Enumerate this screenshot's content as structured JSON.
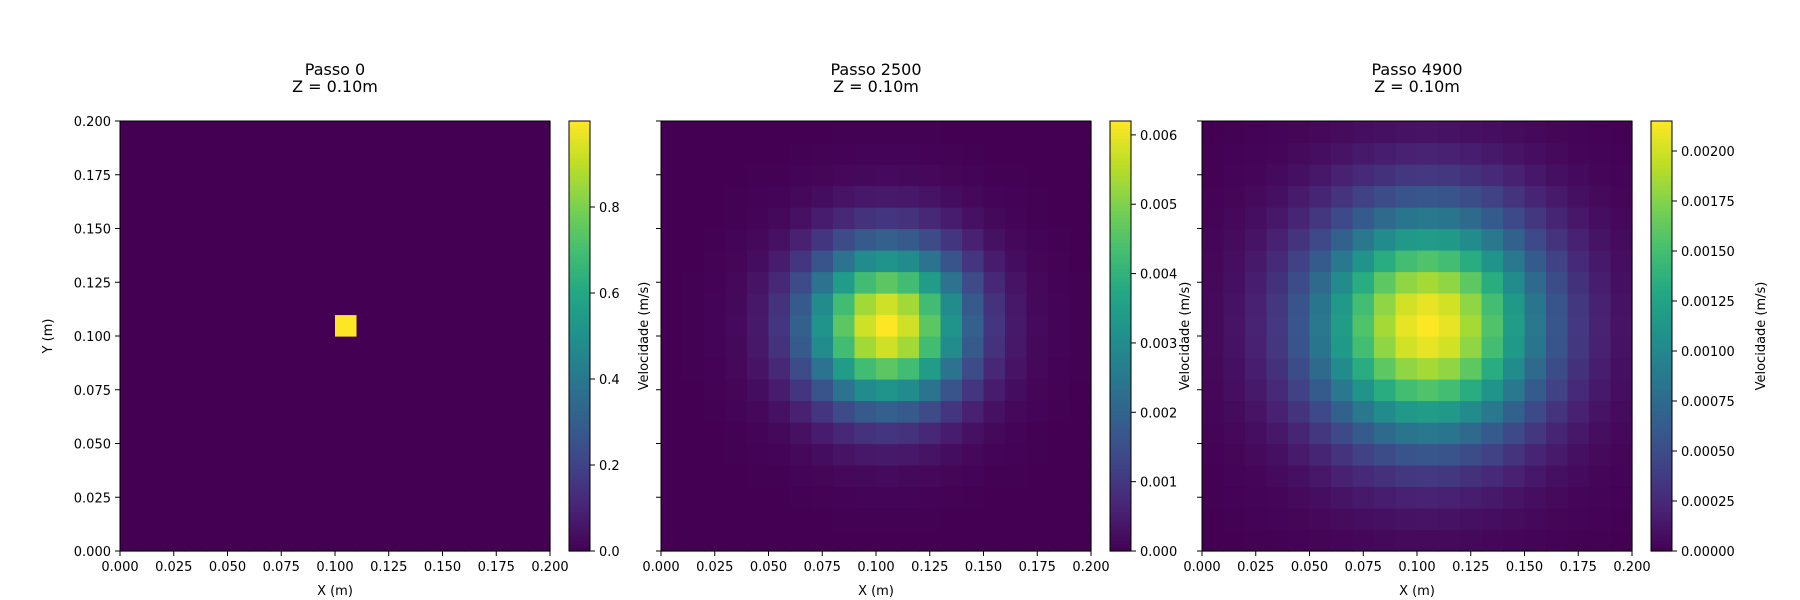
{
  "chart_data": [
    {
      "type": "heatmap",
      "title_line1": "Passo 0",
      "title_line2": "Z = 0.10m",
      "xlabel": "X (m)",
      "ylabel": "Y (m)",
      "xlim": [
        0,
        0.2
      ],
      "ylim": [
        0,
        0.2
      ],
      "grid": false,
      "colormap": "viridis",
      "grid_size": 20,
      "center_cell": [
        10,
        10
      ],
      "peak_value": 1.0,
      "field_profile": "single-cell",
      "xticks": [
        "0.000",
        "0.025",
        "0.050",
        "0.075",
        "0.100",
        "0.125",
        "0.150",
        "0.175",
        "0.200"
      ],
      "yticks": [
        "0.000",
        "0.025",
        "0.050",
        "0.075",
        "0.100",
        "0.125",
        "0.150",
        "0.175",
        "0.200"
      ],
      "show_yticklabels": true,
      "colorbar": {
        "label": "Velocidade (m/s)",
        "min": 0,
        "max": 1.0,
        "ticks": [
          0,
          0.2,
          0.4,
          0.6,
          0.8
        ],
        "tick_labels": [
          "0.0",
          "0.2",
          "0.4",
          "0.6",
          "0.8"
        ]
      }
    },
    {
      "type": "heatmap",
      "title_line1": "Passo 2500",
      "title_line2": "Z = 0.10m",
      "xlabel": "X (m)",
      "ylabel": "",
      "xlim": [
        0,
        0.2
      ],
      "ylim": [
        0,
        0.2
      ],
      "grid": false,
      "colormap": "viridis",
      "grid_size": 20,
      "center_cell": [
        10,
        10
      ],
      "peak_value": 0.0062,
      "field_profile": "gaussian",
      "sigma_cells": 2.6,
      "xticks": [
        "0.000",
        "0.025",
        "0.050",
        "0.075",
        "0.100",
        "0.125",
        "0.150",
        "0.175",
        "0.200"
      ],
      "yticks": [
        "0.000",
        "0.025",
        "0.050",
        "0.075",
        "0.100",
        "0.125",
        "0.150",
        "0.175",
        "0.200"
      ],
      "show_yticklabels": false,
      "colorbar": {
        "label": "Velocidade (m/s)",
        "min": 0,
        "max": 0.0062,
        "ticks": [
          0,
          0.001,
          0.002,
          0.003,
          0.004,
          0.005,
          0.006
        ],
        "tick_labels": [
          "0.000",
          "0.001",
          "0.002",
          "0.003",
          "0.004",
          "0.005",
          "0.006"
        ]
      }
    },
    {
      "type": "heatmap",
      "title_line1": "Passo 4900",
      "title_line2": "Z = 0.10m",
      "xlabel": "X (m)",
      "ylabel": "",
      "xlim": [
        0,
        0.2
      ],
      "ylim": [
        0,
        0.2
      ],
      "grid": false,
      "colormap": "viridis",
      "grid_size": 20,
      "center_cell": [
        10,
        10
      ],
      "peak_value": 0.00215,
      "field_profile": "gaussian",
      "sigma_cells": 3.7,
      "xticks": [
        "0.000",
        "0.025",
        "0.050",
        "0.075",
        "0.100",
        "0.125",
        "0.150",
        "0.175",
        "0.200"
      ],
      "yticks": [
        "0.000",
        "0.025",
        "0.050",
        "0.075",
        "0.100",
        "0.125",
        "0.150",
        "0.175",
        "0.200"
      ],
      "show_yticklabels": false,
      "colorbar": {
        "label": "Velocidade (m/s)",
        "min": 0,
        "max": 0.00215,
        "ticks": [
          0,
          0.00025,
          0.0005,
          0.00075,
          0.001,
          0.00125,
          0.0015,
          0.00175,
          0.002
        ],
        "tick_labels": [
          "0.00000",
          "0.00025",
          "0.00050",
          "0.00075",
          "0.00100",
          "0.00125",
          "0.00150",
          "0.00175",
          "0.00200"
        ]
      }
    }
  ]
}
